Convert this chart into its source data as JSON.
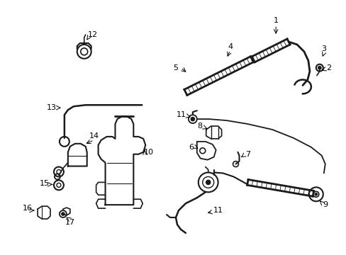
{
  "bg_color": "#ffffff",
  "fig_width": 4.89,
  "fig_height": 3.6,
  "dpi": 100,
  "line_color": "#1a1a1a",
  "line_width": 1.2
}
